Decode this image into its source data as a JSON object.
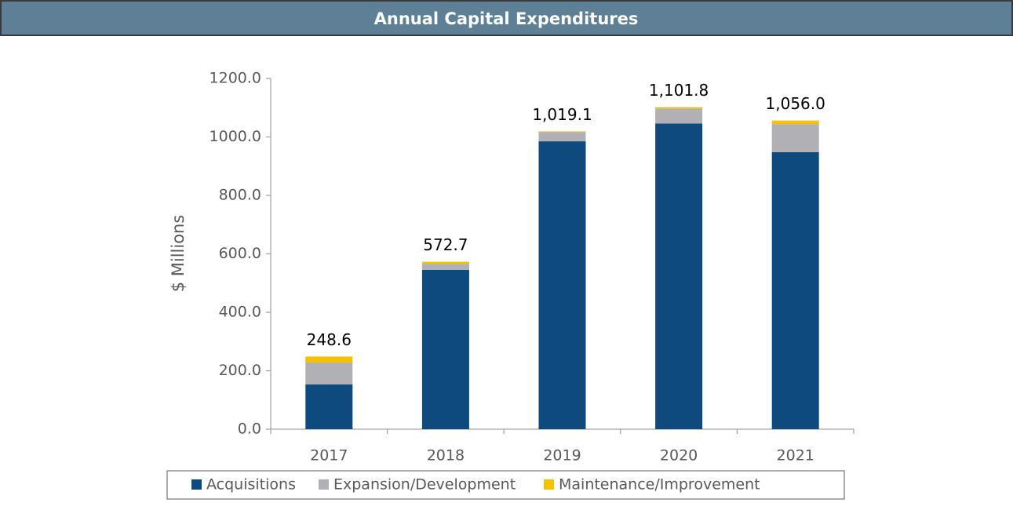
{
  "chart_data": {
    "type": "stacked_bar",
    "title": "Annual Capital Expenditures",
    "ylabel": "$ Millions",
    "categories": [
      "2017",
      "2018",
      "2019",
      "2020",
      "2021"
    ],
    "series": [
      {
        "name": "Acquisitions",
        "color": "#0e4a7d",
        "values": [
          153,
          545,
          985,
          1046,
          948
        ]
      },
      {
        "name": "Expansion/Development",
        "color": "#b1b1b5",
        "values": [
          75,
          21,
          32,
          51,
          96
        ]
      },
      {
        "name": "Maintenance/Improvement",
        "color": "#f5c200",
        "values": [
          20.6,
          6.7,
          2.1,
          4.8,
          12
        ]
      }
    ],
    "totals": [
      248.6,
      572.7,
      1019.1,
      1101.8,
      1056.0
    ],
    "total_labels": [
      "248.6",
      "572.7",
      "1,019.1",
      "1,101.8",
      "1,056.0"
    ],
    "ylim": [
      0,
      1200
    ],
    "yticks": [
      {
        "value": 0,
        "label": "0.0"
      },
      {
        "value": 200,
        "label": "200.0"
      },
      {
        "value": 400,
        "label": "400.0"
      },
      {
        "value": 600,
        "label": "600.0"
      },
      {
        "value": 800,
        "label": "800.0"
      },
      {
        "value": 1000,
        "label": "1000.0"
      },
      {
        "value": 1200,
        "label": "1200.0"
      }
    ],
    "legend": "bottom"
  }
}
